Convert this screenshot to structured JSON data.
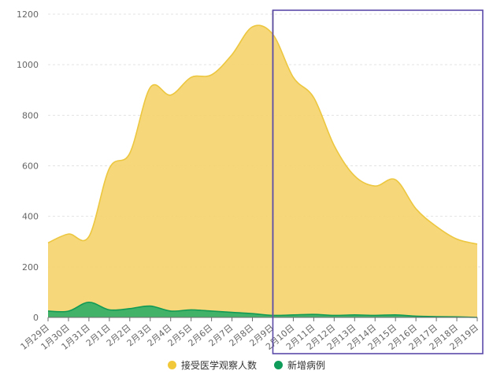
{
  "chart_data": {
    "type": "area",
    "categories": [
      "1月29日",
      "1月30日",
      "1月31日",
      "2月1日",
      "2月2日",
      "2月3日",
      "2月4日",
      "2月5日",
      "2月6日",
      "2月7日",
      "2月8日",
      "2月9日",
      "2月10日",
      "2月11日",
      "2月12日",
      "2月13日",
      "2月14日",
      "2月15日",
      "2月16日",
      "2月17日",
      "2月18日",
      "2月19日"
    ],
    "ylim": [
      0,
      1200
    ],
    "yticks": [
      0,
      200,
      400,
      600,
      800,
      1000,
      1200
    ],
    "series": [
      {
        "name": "接受医学观察人数",
        "color": "#f5d36b",
        "line_color": "#ecc73f",
        "values": [
          295,
          330,
          320,
          590,
          650,
          910,
          880,
          950,
          960,
          1040,
          1150,
          1120,
          950,
          870,
          680,
          560,
          520,
          545,
          430,
          360,
          310,
          290
        ]
      },
      {
        "name": "新增病例",
        "color": "#2fae67",
        "line_color": "#129a55",
        "values": [
          25,
          25,
          60,
          30,
          35,
          45,
          25,
          30,
          25,
          20,
          15,
          8,
          10,
          12,
          8,
          10,
          8,
          10,
          5,
          3,
          2,
          0
        ]
      }
    ],
    "grid": true,
    "legend_position": "bottom",
    "highlight_range": [
      "2月9日",
      "2月19日"
    ],
    "highlight_color": "#5b4aa8",
    "marker_line_at": "2月9日"
  }
}
